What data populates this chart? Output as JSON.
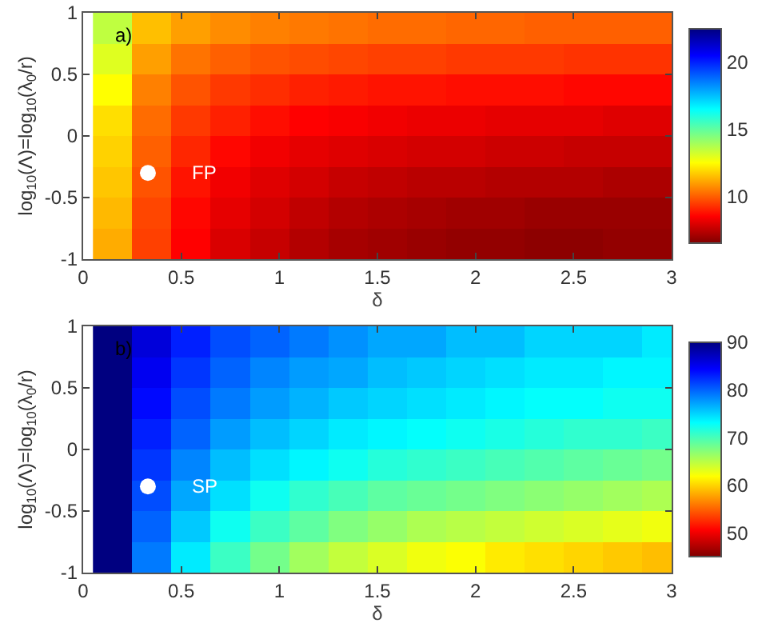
{
  "chart_data": [
    {
      "type": "heatmap",
      "xlabel": "δ",
      "ylabel": "log$_{10}$(Λ)=log$_{10}$(λ$_{0}$/r)",
      "annotations": [
        "a)"
      ],
      "x": [
        0.15,
        0.35,
        0.55,
        0.75,
        0.95,
        1.15,
        1.35,
        1.55,
        1.75,
        1.95,
        2.15,
        2.35,
        2.55,
        2.75,
        2.95
      ],
      "cells": [
        [
          13.5,
          11.5,
          11,
          10.7,
          10.5,
          10.4,
          10.3,
          10.2,
          10.2,
          10.1,
          10.1,
          10,
          10,
          10,
          10
        ],
        [
          13,
          11,
          10.3,
          10,
          9.8,
          9.7,
          9.6,
          9.5,
          9.5,
          9.4,
          9.4,
          9.4,
          9.3,
          9.3,
          9.3
        ],
        [
          12.5,
          10.5,
          9.8,
          9.4,
          9.2,
          9.0,
          8.9,
          8.8,
          8.8,
          8.7,
          8.7,
          8.7,
          8.6,
          8.6,
          8.6
        ],
        [
          12,
          10.2,
          9.4,
          9,
          8.7,
          8.5,
          8.4,
          8.3,
          8.2,
          8.2,
          8.1,
          8.1,
          8.1,
          8,
          8
        ],
        [
          11.8,
          10,
          9.1,
          8.6,
          8.3,
          8.1,
          8,
          7.9,
          7.8,
          7.8,
          7.7,
          7.7,
          7.6,
          7.6,
          7.6
        ],
        [
          11.6,
          9.8,
          8.8,
          8.3,
          8,
          7.8,
          7.6,
          7.5,
          7.4,
          7.4,
          7.3,
          7.3,
          7.3,
          7.2,
          7.2
        ],
        [
          11.4,
          9.6,
          8.6,
          8.1,
          7.8,
          7.5,
          7.3,
          7.2,
          7.1,
          7.0,
          7.0,
          6.9,
          6.9,
          6.9,
          6.9
        ],
        [
          11.2,
          9.5,
          8.5,
          7.9,
          7.6,
          7.3,
          7.1,
          7.0,
          6.9,
          6.8,
          6.8,
          6.7,
          6.7,
          6.8,
          6.8
        ]
      ],
      "clim": [
        6.5,
        22.5
      ],
      "cticks": [
        10,
        15,
        20
      ],
      "xlim": [
        0,
        3
      ],
      "xticks": [
        0,
        0.5,
        1,
        1.5,
        2,
        2.5,
        3
      ],
      "ylim": [
        -1,
        1
      ],
      "yticks": [
        -1,
        -0.5,
        0,
        0.5,
        1
      ],
      "series": [
        {
          "type": "scatter",
          "name": "FP",
          "color": "#ffffff",
          "x": [
            0.33
          ],
          "values": [
            -0.3
          ]
        }
      ],
      "marker": "circle"
    },
    {
      "type": "heatmap",
      "xlabel": "δ",
      "ylabel": "log$_{10}$(Λ)=log$_{10}$(λ$_{0}$/r)",
      "annotations": [
        "b)"
      ],
      "x": [
        0.15,
        0.35,
        0.55,
        0.75,
        0.95,
        1.15,
        1.35,
        1.55,
        1.75,
        1.95,
        2.15,
        2.35,
        2.55,
        2.75,
        2.95
      ],
      "cells": [
        [
          90,
          86,
          83,
          81,
          80,
          79,
          78,
          77,
          77,
          76,
          76,
          75,
          75,
          75,
          74
        ],
        [
          90,
          85,
          82,
          80,
          78.5,
          77.5,
          77,
          76,
          75.5,
          75,
          74.5,
          74,
          74,
          73.5,
          73.5
        ],
        [
          90,
          84,
          81,
          79,
          77.5,
          76.5,
          75.5,
          75,
          74.5,
          74,
          73.5,
          73,
          73,
          72.5,
          72.5
        ],
        [
          90,
          83,
          80,
          77.5,
          76,
          75,
          74,
          73.5,
          73,
          72.5,
          72,
          71.5,
          71,
          71,
          70.5
        ],
        [
          90,
          82,
          78.5,
          76,
          74.5,
          73.5,
          72.5,
          71.5,
          71,
          70.5,
          70,
          69.5,
          69,
          68.5,
          68
        ],
        [
          90,
          81,
          77,
          74.5,
          72.5,
          71,
          70,
          69,
          68.5,
          68,
          67.5,
          67,
          66.5,
          66,
          65.5
        ],
        [
          90,
          80,
          75.5,
          72.5,
          70.5,
          69,
          67.5,
          66.5,
          65.5,
          65,
          64.5,
          64,
          63.5,
          63,
          62.5
        ],
        [
          90,
          79,
          74,
          70.5,
          68,
          66,
          64.5,
          63.5,
          62.5,
          62,
          61,
          60.5,
          60,
          59.5,
          59
        ]
      ],
      "clim": [
        45,
        90
      ],
      "cticks": [
        50,
        60,
        70,
        80,
        90
      ],
      "xlim": [
        0,
        3
      ],
      "xticks": [
        0,
        0.5,
        1,
        1.5,
        2,
        2.5,
        3
      ],
      "ylim": [
        -1,
        1
      ],
      "yticks": [
        -1,
        -0.5,
        0,
        0.5,
        1
      ],
      "series": [
        {
          "type": "scatter",
          "name": "SP",
          "color": "#ffffff",
          "x": [
            0.33
          ],
          "values": [
            -0.3
          ]
        }
      ],
      "marker": "circle"
    }
  ]
}
